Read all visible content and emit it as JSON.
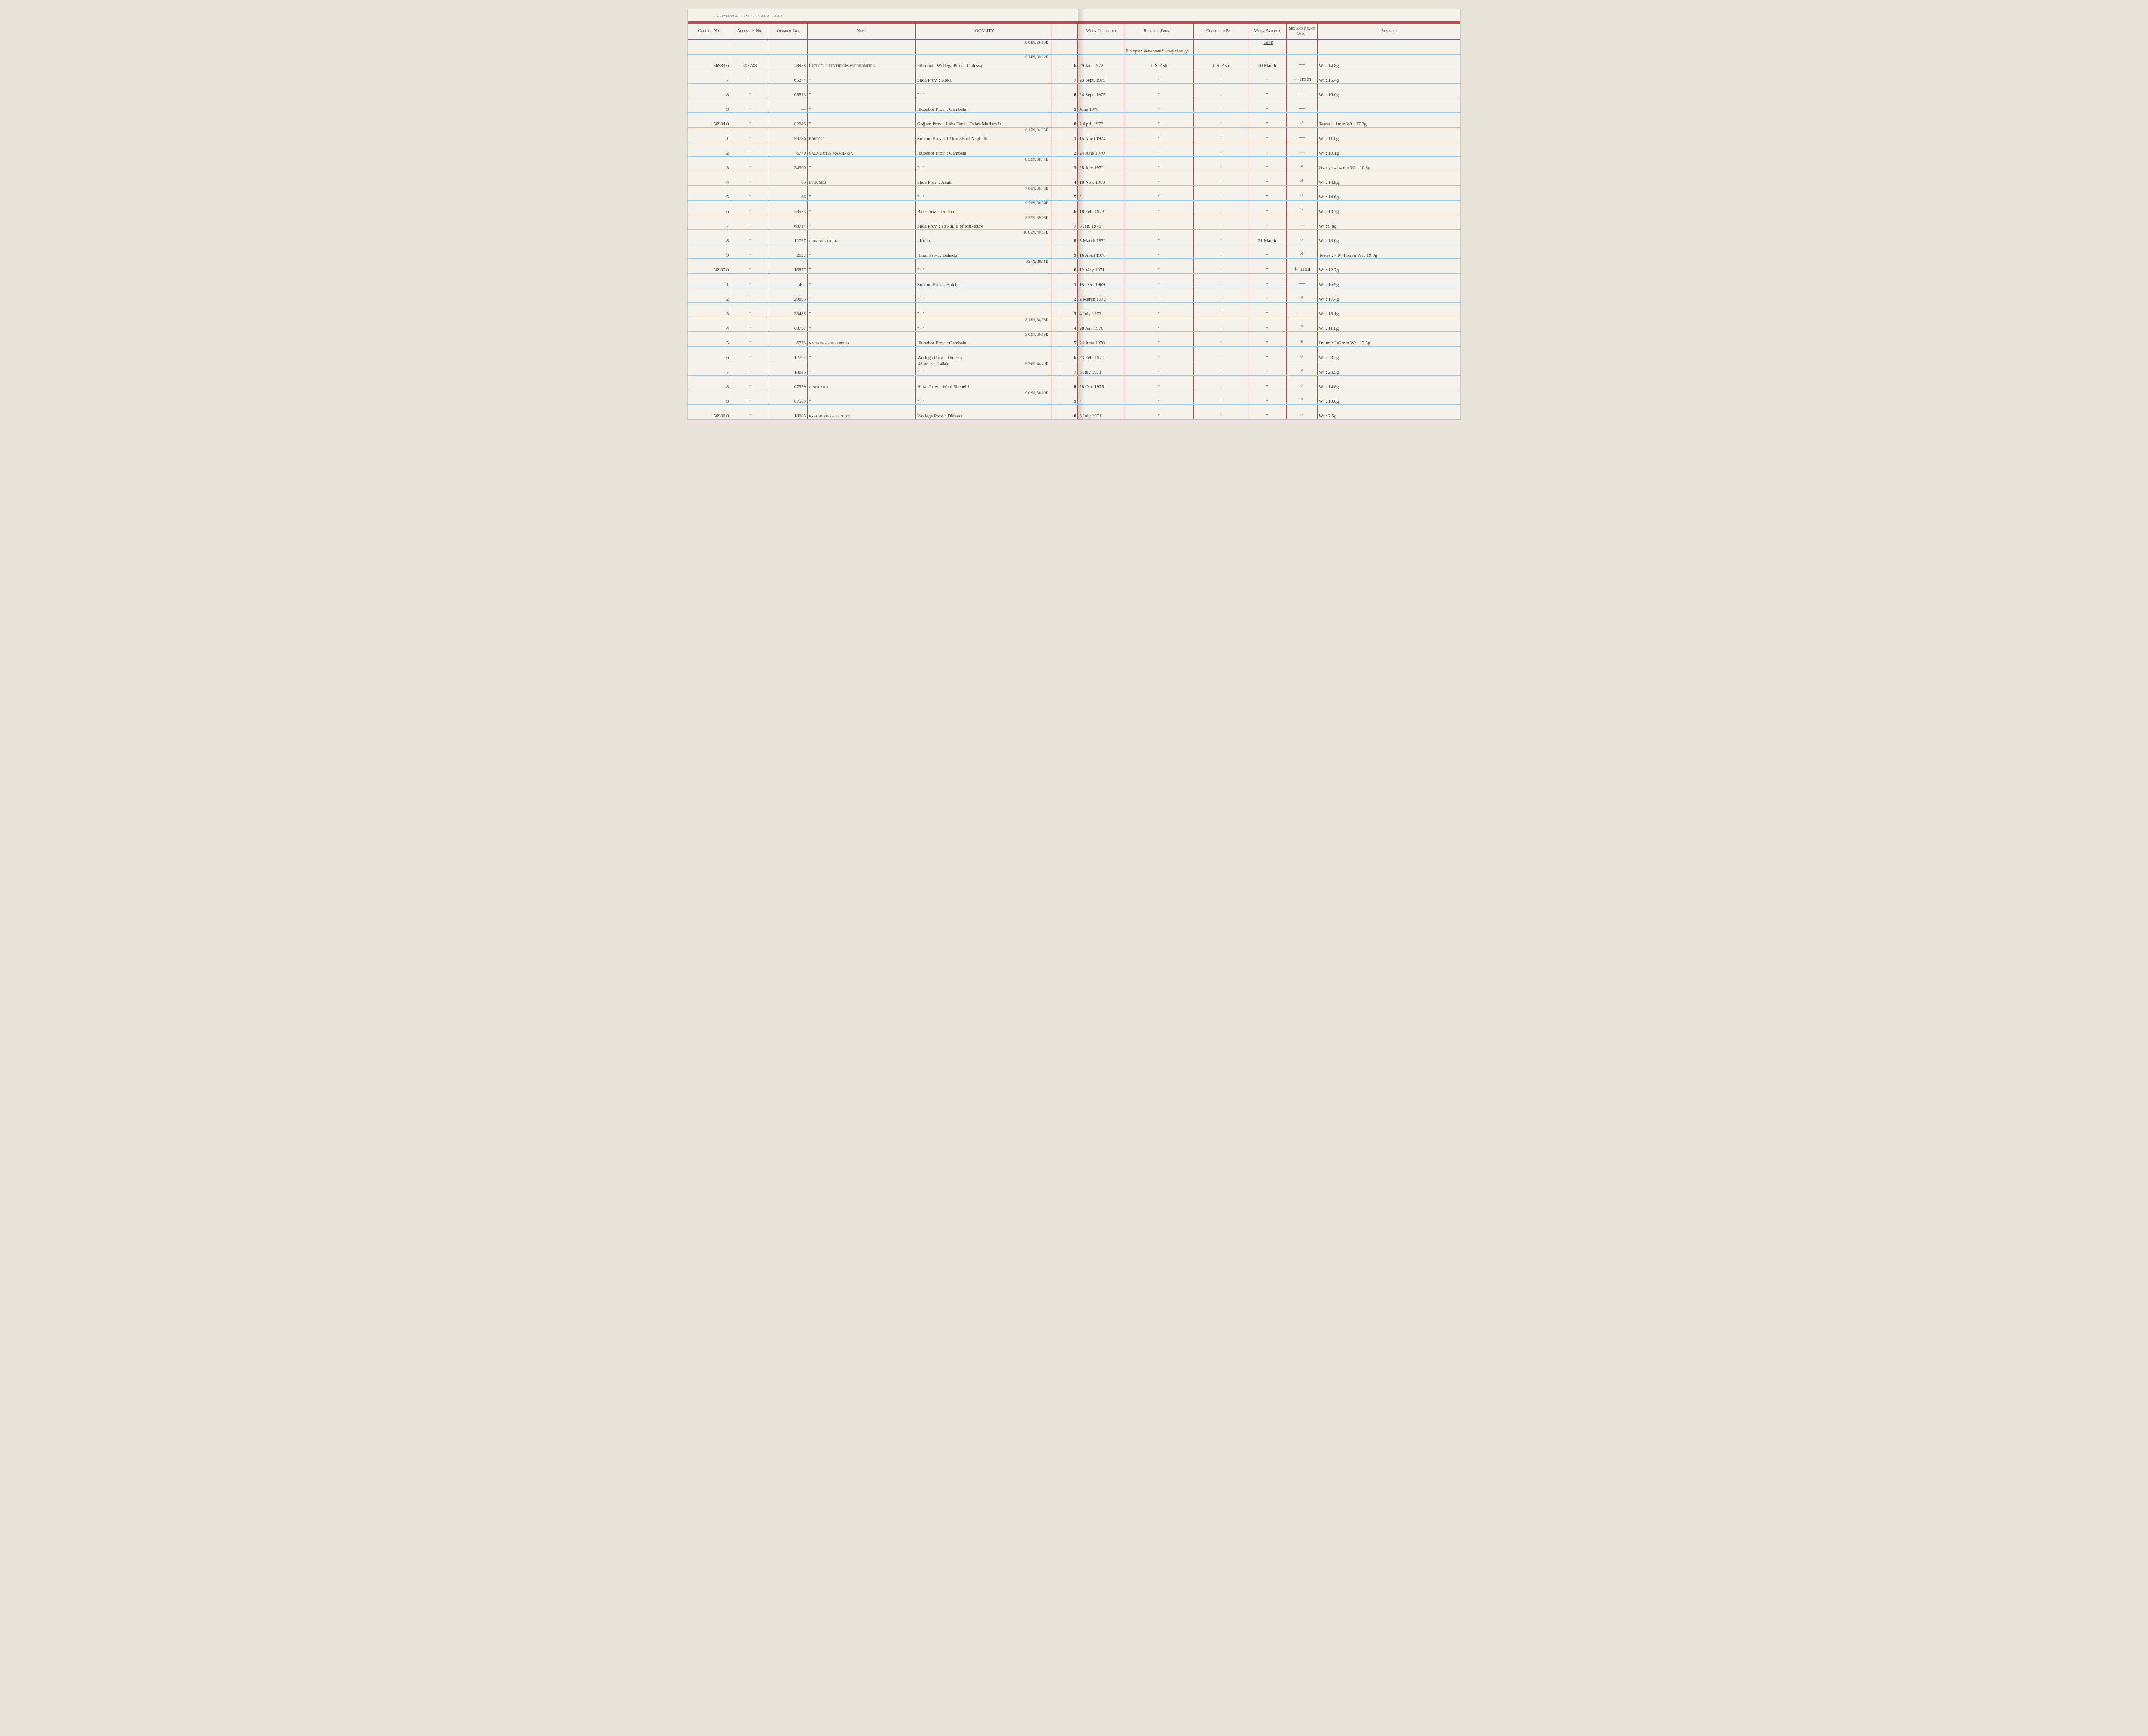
{
  "printline": "U.S. GOVERNMENT PRINTING OFFICE   16—73595-3",
  "year_header": "1978",
  "received_top": "Ethiopian Vertebrate Survey through",
  "columns": {
    "catalog": "Catalog No.",
    "accession": "Accession No.",
    "original": "Original No.",
    "name": "Name",
    "locality": "LOCALITY",
    "colno": "",
    "when_collected": "When Collected",
    "received": "Received From—",
    "collected_by": "Collected By—",
    "when_entered": "When Entered",
    "sex": "Sex and No. of Spec.",
    "remarks": "Remarks"
  },
  "rows": [
    {
      "cat": "56983 6",
      "acc": "307248",
      "orig": "28958",
      "name": "Cisticola erythrops pyrrhomitra",
      "coord": "9.02N, 36.09E",
      "loc": "Ethiopia : Wollega Prov. : Didessa",
      "coln": "6",
      "when": "29 Jan. 1972",
      "recv": "J. S. Ash",
      "by": "J. S. Ash",
      "ent": "20 March",
      "sex": "—",
      "rem": "Wt : 14.8g"
    },
    {
      "cat": "7",
      "acc": "\"",
      "orig": "65274",
      "name": "\"",
      "coord": "8.24N, 39.02E",
      "loc": "Shoa Prov. : Koka",
      "coln": "7",
      "when": "23 Sept. 1975",
      "recv": "\"",
      "by": "\"",
      "ent": "\"",
      "sex": "— imm",
      "rem": "Wt : 15.4g"
    },
    {
      "cat": "8",
      "acc": "\"",
      "orig": "65513",
      "name": "\"",
      "coord": "",
      "loc": "\"    :    \"",
      "coln": "8",
      "when": "24 Sept. 1975",
      "recv": "\"",
      "by": "\"",
      "ent": "\"",
      "sex": "—",
      "rem": "Wt : 16.6g"
    },
    {
      "cat": "9",
      "acc": "\"",
      "orig": "—",
      "name": "\"",
      "coord": "",
      "loc": "Illubabor Prov. : Gambela",
      "coln": "9",
      "when": "June 1970",
      "recv": "\"",
      "by": "\"",
      "ent": "\"",
      "sex": "—",
      "rem": ""
    },
    {
      "cat": "56984 0",
      "acc": "\"",
      "orig": "82643",
      "name": "\"",
      "coord": "",
      "loc": "Gojjam Prov. : Lake Tana . Debre Mariam Is.",
      "coln": "0",
      "when": "2 April 1977",
      "recv": "\"",
      "by": "\"",
      "ent": "\"",
      "sex": "♂",
      "rem": "Testes < 1mm  Wt : 17.3g"
    },
    {
      "cat": "1",
      "acc": "\"",
      "orig": "50786",
      "name": "bodessa",
      "coord": "",
      "loc": "Sidamo Prov. : 12 km SE of Neghelli",
      "coln": "1",
      "when": "15 April 1974",
      "recv": "\"",
      "by": "\"",
      "ent": "\"",
      "sex": "—",
      "rem": "Wt : 11.0g"
    },
    {
      "cat": "2",
      "acc": "\"",
      "orig": "6770",
      "name": "galactotes marginata",
      "coord": "8.15N, 34.35E",
      "loc": "Illubabor Prov. : Gambela",
      "coln": "2",
      "when": "24 June 1970",
      "recv": "\"",
      "by": "\"",
      "ent": "\"",
      "sex": "—",
      "rem": "Wt : 10.1g"
    },
    {
      "cat": "3",
      "acc": "\"",
      "orig": "34300",
      "name": "\"",
      "coord": "",
      "loc": "\"    :    \"",
      "coln": "3",
      "when": "28 July 1972",
      "recv": "\"",
      "by": "\"",
      "ent": "\"",
      "sex": "♀",
      "rem": "Ovary : 4×4mm  Wt : 10.8g"
    },
    {
      "cat": "4",
      "acc": "\"",
      "orig": "63",
      "name": "lugubris",
      "coord": "8.52N, 38.47E",
      "loc": "Shoa Prov. : Akaki",
      "coln": "4",
      "when": "18 Nov. 1969",
      "recv": "\"",
      "by": "\"",
      "ent": "\"",
      "sex": "♂",
      "rem": "Wt : 14.8g"
    },
    {
      "cat": "5",
      "acc": "\"",
      "orig": "66",
      "name": "\"",
      "coord": "",
      "loc": "\"    :    \"",
      "coln": "5",
      "when": "\"",
      "recv": "\"",
      "by": "\"",
      "ent": "\"",
      "sex": "♂",
      "rem": "Wt : 14.6g"
    },
    {
      "cat": "6",
      "acc": "\"",
      "orig": "38573",
      "name": "\"",
      "coord": "7.06N, 39.48E",
      "loc": "Bale Prov. : Dinshu",
      "coln": "6",
      "when": "18 Feb. 1973",
      "recv": "\"",
      "by": "\"",
      "ent": "\"",
      "sex": "♀",
      "rem": "Wt : 13.7g"
    },
    {
      "cat": "7",
      "acc": "\"",
      "orig": "68714",
      "name": "\"",
      "coord": "9.39N, 38.59E",
      "loc": "Shoa Prov. : 18 km. E of Muketure",
      "coln": "7",
      "when": "8 Jan. 1976",
      "recv": "\"",
      "by": "\"",
      "ent": "\"",
      "sex": "—",
      "rem": "Wt : 9.8g"
    },
    {
      "cat": "8",
      "acc": "\"",
      "orig": "12727",
      "name": "chiniana fricki",
      "coord": "8.27N, 39.06E",
      "loc": ": Koka",
      "coln": "8",
      "when": "5 March 1971",
      "recv": "\"",
      "by": "\"",
      "ent": "21 March",
      "sex": "♂",
      "rem": "Wt : 13.0g"
    },
    {
      "cat": "9",
      "acc": "\"",
      "orig": "2627",
      "name": "\"",
      "coord": "10.05N, 40.37E",
      "loc": "Harar Prov. : Bahadu",
      "coln": "9",
      "when": "16 April 1970",
      "recv": "\"",
      "by": "\"",
      "ent": "\"",
      "sex": "♂",
      "rem": "Testes : 7.0×4.5mm  Wt : 19.0g"
    },
    {
      "cat": "56985 0",
      "acc": "\"",
      "orig": "16877",
      "name": "\"",
      "coord": "",
      "loc": "\"    :    \"",
      "coln": "0",
      "when": "12 May 1971",
      "recv": "\"",
      "by": "\"",
      "ent": "\"",
      "sex": "♀ imm",
      "rem": "Wt : 12.7g"
    },
    {
      "cat": "1",
      "acc": "\"",
      "orig": "461",
      "name": "\"",
      "coord": "6.27N, 38.11E",
      "loc": "Sidamo Prov. : Bulcha",
      "coln": "1",
      "when": "15 Dec. 1969",
      "recv": "\"",
      "by": "\"",
      "ent": "\"",
      "sex": "—",
      "rem": "Wt : 16.9g"
    },
    {
      "cat": "2",
      "acc": "\"",
      "orig": "29695",
      "name": "\"",
      "coord": "",
      "loc": "\"    :    \"",
      "coln": "2",
      "when": "2 March 1972",
      "recv": "\"",
      "by": "\"",
      "ent": "\"",
      "sex": "♂",
      "rem": "Wt : 17.4g"
    },
    {
      "cat": "3",
      "acc": "\"",
      "orig": "33485",
      "name": "\"",
      "coord": "",
      "loc": "\"    :    \"",
      "coln": "3",
      "when": "4 July 1972",
      "recv": "\"",
      "by": "\"",
      "ent": "\"",
      "sex": "—",
      "rem": "Wt : 18.1g"
    },
    {
      "cat": "4",
      "acc": "\"",
      "orig": "68737",
      "name": "\"",
      "coord": "",
      "loc": "\"    :    \"",
      "coln": "4",
      "when": "28 Jan. 1976",
      "recv": "\"",
      "by": "\"",
      "ent": "\"",
      "sex": "♀",
      "rem": "Wt : 11.8g"
    },
    {
      "cat": "5",
      "acc": "\"",
      "orig": "6775",
      "name": "natalensis inexpecta",
      "coord": "8.15N, 34.35E",
      "loc": "Illubabor Prov. : Gambela",
      "coln": "5",
      "when": "24 June 1970",
      "recv": "\"",
      "by": "\"",
      "ent": "\"",
      "sex": "♀",
      "rem": "Ovum : 3×2mm  Wt : 13.5g"
    },
    {
      "cat": "6",
      "acc": "\"",
      "orig": "12707",
      "name": "\"",
      "coord": "9.02N, 36.09E",
      "loc": "Wollega Prov. : Didessa",
      "coln": "6",
      "when": "23 Feb. 1971",
      "recv": "\"",
      "by": "\"",
      "ent": "\"",
      "sex": "♂",
      "rem": "Wt : 23.2g"
    },
    {
      "cat": "7",
      "acc": "\"",
      "orig": "18645",
      "name": "\"",
      "coord": "",
      "loc": "\"    :    \"",
      "coln": "7",
      "when": "3 July 1971",
      "recv": "\"",
      "by": "\"",
      "ent": "\"",
      "sex": "♂",
      "rem": "Wt : 23.5g"
    },
    {
      "cat": "8",
      "acc": "\"",
      "orig": "67559",
      "name": "cinereola",
      "coord": "5.26N, 44.29E",
      "sub": "48 km. E of Callafo",
      "loc": "Harar Prov. : Wabi Shebelli",
      "coln": "8",
      "when": "28 Oct. 1975",
      "recv": "\"",
      "by": "\"",
      "ent": "\"",
      "sex": "♂",
      "rem": "Wt : 14.8g"
    },
    {
      "cat": "9",
      "acc": "\"",
      "orig": "67560",
      "name": "\"",
      "coord": "",
      "loc": "\"    :    \"",
      "coln": "9",
      "when": "\"",
      "recv": "\"",
      "by": "\"",
      "ent": "\"",
      "sex": "♀",
      "rem": "Wt : 10.0g"
    },
    {
      "cat": "56986 0",
      "acc": "\"",
      "orig": "18605",
      "name": "brachyptera zedlitzi",
      "coord": "9.02N, 36.09E",
      "loc": "Wollega Prov. : Didessa",
      "coln": "0",
      "when": "3 July 1971",
      "recv": "\"",
      "by": "\"",
      "ent": "\"",
      "sex": "♂",
      "rem": "Wt : 7.5g"
    }
  ]
}
